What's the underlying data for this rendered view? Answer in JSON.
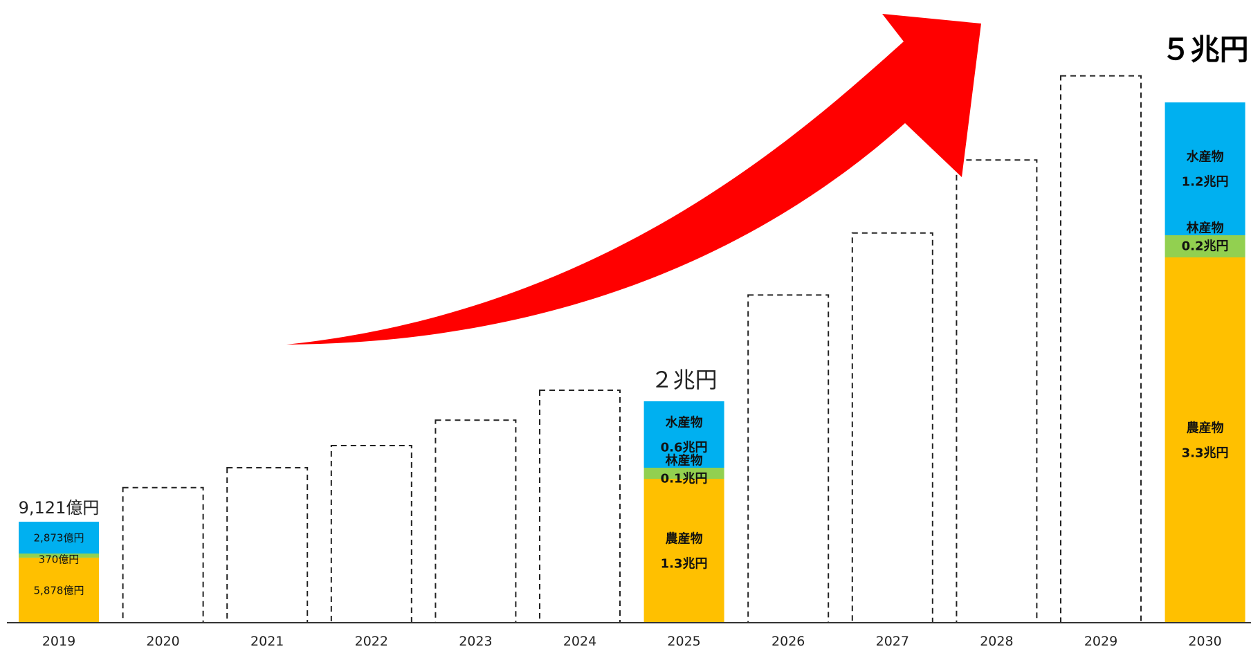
{
  "chart_data": {
    "type": "bar",
    "stacked": true,
    "categories": [
      "2019",
      "2020",
      "2021",
      "2022",
      "2023",
      "2024",
      "2025",
      "2026",
      "2027",
      "2028",
      "2029",
      "2030"
    ],
    "series": [
      {
        "name": "農産物",
        "values": [
          0.5878,
          null,
          null,
          null,
          null,
          null,
          1.3,
          null,
          null,
          null,
          null,
          3.3
        ]
      },
      {
        "name": "林産物",
        "values": [
          0.037,
          null,
          null,
          null,
          null,
          null,
          0.1,
          null,
          null,
          null,
          null,
          0.2
        ]
      },
      {
        "name": "水産物",
        "values": [
          0.2873,
          null,
          null,
          null,
          null,
          null,
          0.6,
          null,
          null,
          null,
          null,
          1.2
        ]
      }
    ],
    "projected_outline_totals": [
      null,
      1.22,
      1.4,
      1.6,
      1.83,
      2.1,
      null,
      2.96,
      3.52,
      4.18,
      4.94,
      null
    ],
    "totals": [
      {
        "index": 0,
        "value": 0.9121,
        "label": "9,121億円"
      },
      {
        "index": 6,
        "value": 2.0,
        "label": "２兆円"
      },
      {
        "index": 11,
        "value": 5.0,
        "label": "５兆円"
      }
    ],
    "segment_labels": [
      {
        "index": 0,
        "series": 0,
        "lines": [
          "5,878億円"
        ]
      },
      {
        "index": 0,
        "series": 1,
        "lines": [
          "370億円"
        ]
      },
      {
        "index": 0,
        "series": 2,
        "lines": [
          "2,873億円"
        ]
      },
      {
        "index": 6,
        "series": 0,
        "lines": [
          "農産物",
          "1.3兆円"
        ]
      },
      {
        "index": 6,
        "series": 1,
        "lines": [
          "林産物",
          "0.1兆円"
        ]
      },
      {
        "index": 6,
        "series": 2,
        "lines": [
          "水産物",
          "0.6兆円"
        ]
      },
      {
        "index": 11,
        "series": 0,
        "lines": [
          "農産物",
          "3.3兆円"
        ]
      },
      {
        "index": 11,
        "series": 1,
        "lines": [
          "林産物",
          "0.2兆円"
        ]
      },
      {
        "index": 11,
        "series": 2,
        "lines": [
          "水産物",
          "1.2兆円"
        ]
      }
    ],
    "ylim": [
      0,
      5.2
    ],
    "title": "",
    "xlabel": "",
    "ylabel": "",
    "grid": false,
    "colors": {
      "農産物": "#FFC000",
      "林産物": "#92D050",
      "水産物": "#00B0F0",
      "outline": "#222222",
      "arrow": "#FF0000",
      "axis": "#333333"
    }
  }
}
